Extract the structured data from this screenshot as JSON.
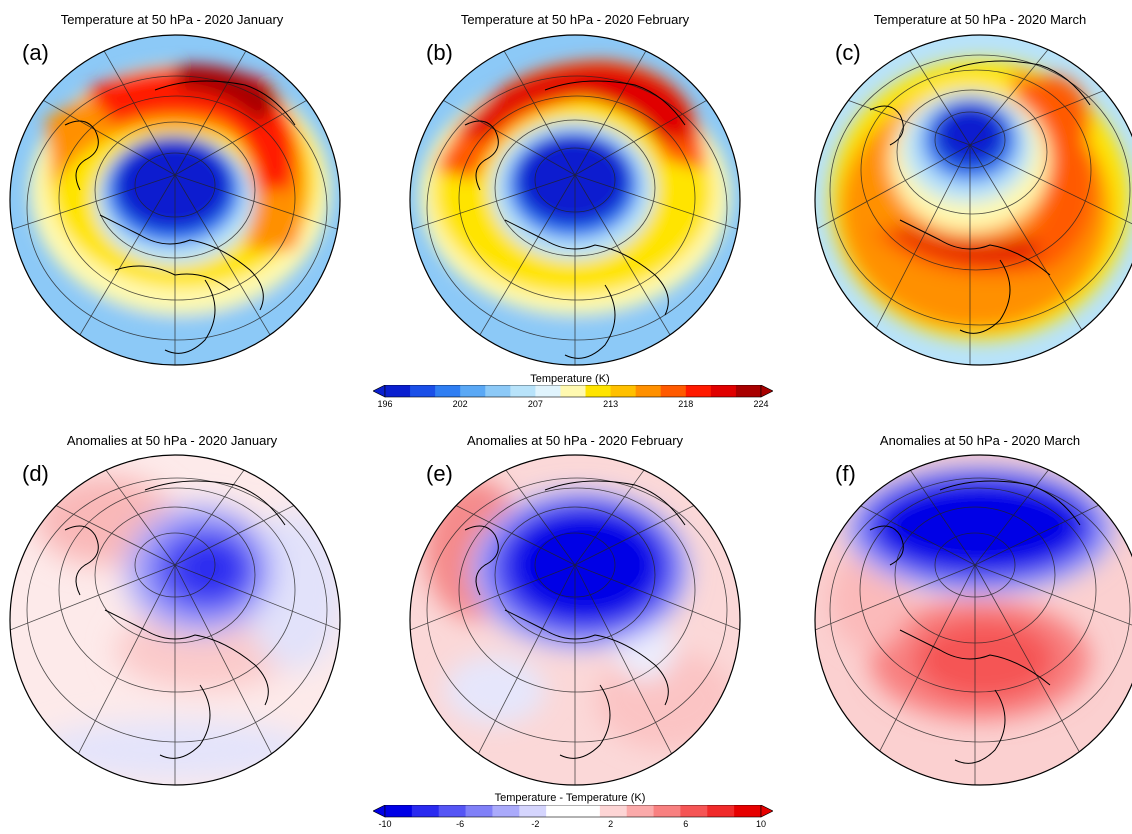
{
  "temperature_row": {
    "panels": [
      {
        "label": "(a)",
        "title": "Temperature at 50 hPa - 2020 January"
      },
      {
        "label": "(b)",
        "title": "Temperature at 50 hPa - 2020 February"
      },
      {
        "label": "(c)",
        "title": "Temperature at 50 hPa - 2020 March"
      }
    ],
    "colorbar": {
      "title": "Temperature (K)",
      "ticks": [
        "196",
        "202",
        "207",
        "213",
        "218",
        "224"
      ],
      "colors": [
        "#0a1fcf",
        "#1a4fe8",
        "#2f7ef2",
        "#5aa8f5",
        "#8cc9f7",
        "#b8e3fa",
        "#e0f4fd",
        "#fff9b0",
        "#ffe400",
        "#ffc000",
        "#ff9000",
        "#ff5a00",
        "#ff1a00",
        "#e00000",
        "#a80000"
      ]
    }
  },
  "anomaly_row": {
    "panels": [
      {
        "label": "(d)",
        "title": "Anomalies at 50 hPa - 2020 January"
      },
      {
        "label": "(e)",
        "title": "Anomalies at 50 hPa - 2020 February"
      },
      {
        "label": "(f)",
        "title": "Anomalies at 50 hPa - 2020 March"
      }
    ],
    "colorbar": {
      "title": "Temperature - Temperature (K)",
      "ticks": [
        "-10",
        "-6",
        "-2",
        "2",
        "6",
        "10"
      ],
      "colors": [
        "#0000e6",
        "#2a2af0",
        "#5555f5",
        "#8080f8",
        "#aaaafb",
        "#d5d5fd",
        "#ffffff",
        "#ffffff",
        "#fdd5d5",
        "#fbaaaa",
        "#f88080",
        "#f55555",
        "#f02a2a",
        "#e60000"
      ]
    }
  }
}
